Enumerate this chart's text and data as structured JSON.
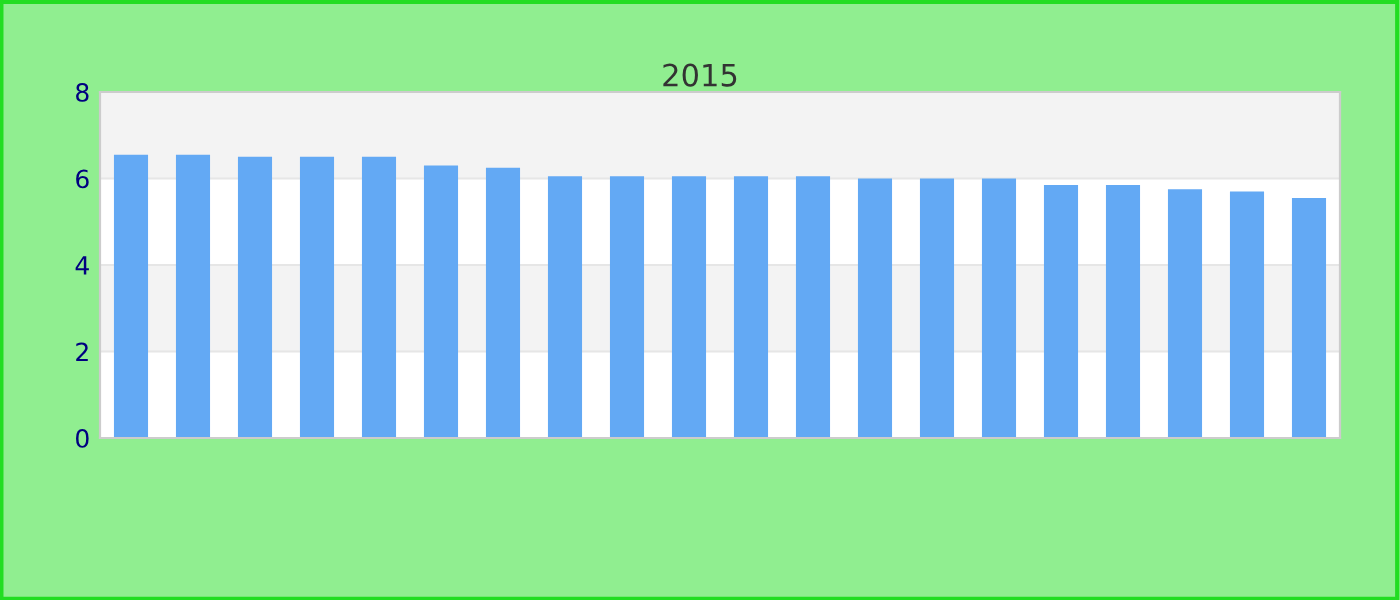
{
  "chart_data": {
    "type": "bar",
    "subtitle": "2015",
    "categories": [
      null,
      null,
      null,
      null,
      null,
      null,
      null,
      null,
      null,
      null,
      null,
      null,
      null,
      null,
      null,
      null,
      null,
      null,
      null,
      null
    ],
    "values": [
      6.55,
      6.55,
      6.5,
      6.5,
      6.5,
      6.3,
      6.25,
      6.05,
      6.05,
      6.05,
      6.05,
      6.05,
      6.0,
      6.0,
      6.0,
      5.85,
      5.85,
      5.75,
      5.7,
      5.55
    ],
    "color": "#63a9f4",
    "ylim": [
      0,
      8
    ],
    "yticks": [
      0,
      2,
      4,
      6,
      8
    ],
    "grid": "y",
    "legend": false
  }
}
